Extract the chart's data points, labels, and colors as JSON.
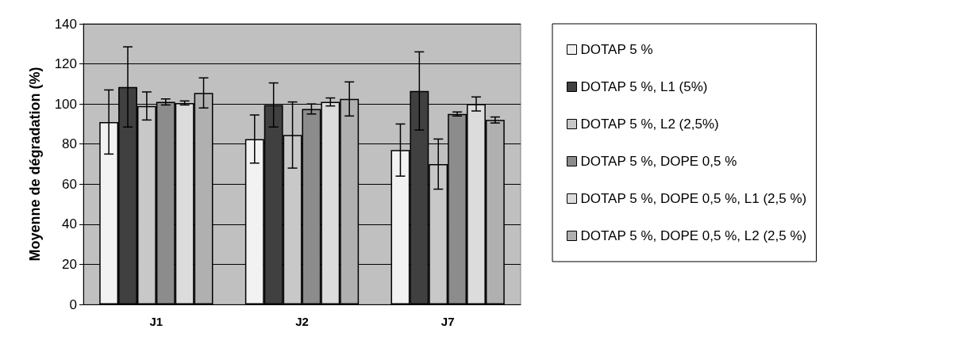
{
  "chart_data": {
    "type": "bar",
    "ylabel": "Moyenne de dégradation (%)",
    "categories": [
      "J1",
      "J2",
      "J7"
    ],
    "series": [
      {
        "name": "DOTAP 5 %",
        "color": "#f2f2f2",
        "values": [
          91,
          82.5,
          77
        ],
        "errors": [
          16,
          12,
          13
        ]
      },
      {
        "name": "DOTAP 5 %, L1 (5%)",
        "color": "#404040",
        "values": [
          108.5,
          99.5,
          106.5
        ],
        "errors": [
          20,
          11,
          19.5
        ]
      },
      {
        "name": "DOTAP 5 %, L2 (2,5%)",
        "color": "#c8c8c8",
        "values": [
          99,
          84.5,
          70
        ],
        "errors": [
          7,
          16.5,
          12.5
        ]
      },
      {
        "name": "DOTAP 5 %, DOPE 0,5 %",
        "color": "#8c8c8c",
        "values": [
          101,
          97.5,
          95
        ],
        "errors": [
          1.5,
          2.5,
          1
        ]
      },
      {
        "name": "DOTAP 5 %, DOPE 0,5 %, L1 (2,5 %)",
        "color": "#dcdcdc",
        "values": [
          100.5,
          101,
          100
        ],
        "errors": [
          1,
          2,
          3.5
        ]
      },
      {
        "name": "DOTAP 5 %, DOPE 0,5 %, L2 (2,5 %)",
        "color": "#b0b0b0",
        "values": [
          105.5,
          102.5,
          92
        ],
        "errors": [
          7.5,
          8.5,
          1.5
        ]
      }
    ],
    "ylim": [
      0,
      140
    ],
    "yticks": [
      0,
      20,
      40,
      60,
      80,
      100,
      120,
      140
    ],
    "grid": "y",
    "legend": "right"
  }
}
